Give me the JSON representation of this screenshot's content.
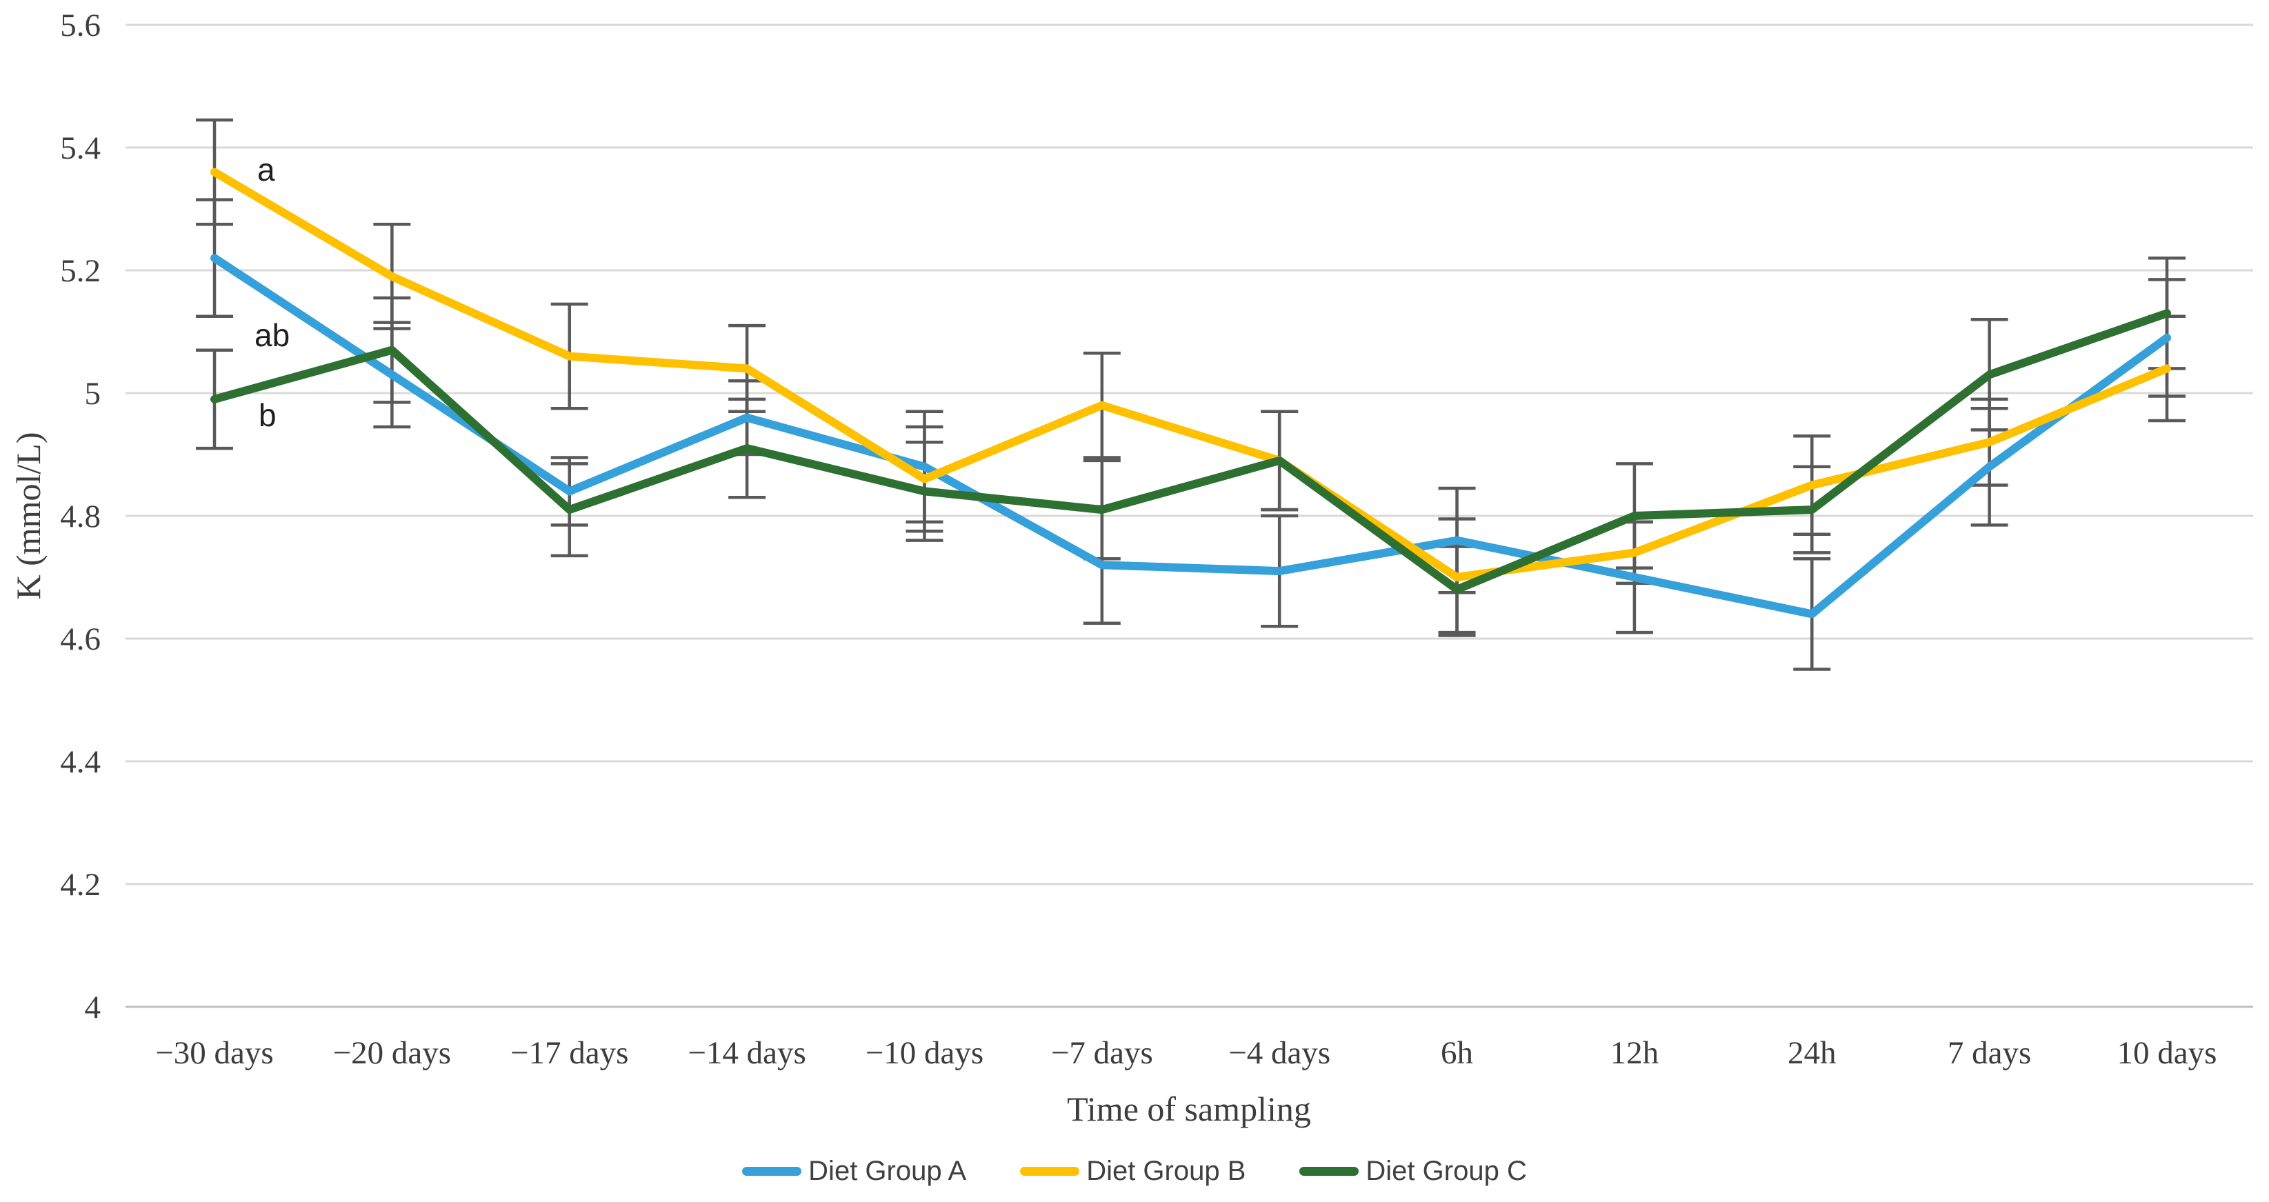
{
  "page": {
    "background": "#FFFFFF"
  },
  "chart_data": {
    "type": "line",
    "title": "",
    "xlabel": "Time of sampling",
    "ylabel": "K (mmol/L)",
    "ylim": [
      4,
      5.6
    ],
    "grid": true,
    "legend_position": "bottom",
    "error_bars": true,
    "yticks": [
      {
        "label": "5.6",
        "value": 5.6
      },
      {
        "label": "5.4",
        "value": 5.4
      },
      {
        "label": "5.2",
        "value": 5.2
      },
      {
        "label": "5",
        "value": 5.0
      },
      {
        "label": "4.8",
        "value": 4.8
      },
      {
        "label": "4.6",
        "value": 4.6
      },
      {
        "label": "4.4",
        "value": 4.4
      },
      {
        "label": "4.2",
        "value": 4.2
      },
      {
        "label": "4",
        "value": 4.0
      }
    ],
    "categories": [
      "−30 days",
      "−20 days",
      "−17 days",
      "−14 days",
      "−10 days",
      "−7 days",
      "−4 days",
      "6h",
      "12h",
      "24h",
      "7 days",
      "10 days"
    ],
    "series": [
      {
        "name": "Diet Group A",
        "color": "#36A0DA",
        "values": [
          5.22,
          5.03,
          4.84,
          4.96,
          4.88,
          4.72,
          4.71,
          4.76,
          4.7,
          4.64,
          4.88,
          5.09
        ],
        "errors": [
          0.095,
          0.085,
          0.055,
          0.06,
          0.09,
          0.095,
          0.09,
          0.085,
          0.09,
          0.09,
          0.095,
          0.095
        ]
      },
      {
        "name": "Diet Group B",
        "color": "#FFC000",
        "values": [
          5.36,
          5.19,
          5.06,
          5.04,
          4.86,
          4.98,
          4.89,
          4.7,
          4.74,
          4.85,
          4.92,
          5.04
        ],
        "errors": [
          0.085,
          0.085,
          0.085,
          0.07,
          0.085,
          0.085,
          0.08,
          0.095,
          0.05,
          0.08,
          0.07,
          0.085
        ]
      },
      {
        "name": "Diet Group C",
        "color": "#2E7031",
        "values": [
          4.99,
          5.07,
          4.81,
          4.91,
          4.84,
          4.81,
          4.89,
          4.68,
          4.8,
          4.81,
          5.03,
          5.13
        ],
        "errors": [
          0.08,
          0.085,
          0.075,
          0.08,
          0.08,
          0.08,
          0.08,
          0.07,
          0.085,
          0.07,
          0.09,
          0.09
        ]
      }
    ],
    "annotations": [
      {
        "label": "a",
        "category_index": 0,
        "value": 5.36,
        "dx": 62
      },
      {
        "label": "ab",
        "category_index": 0,
        "value": 5.09,
        "dx": 58
      },
      {
        "label": "b",
        "category_index": 0,
        "value": 4.96,
        "dx": 64
      }
    ],
    "colors": {
      "grid": "#D9D9D9",
      "axis_line": "#BFBFBF",
      "error_bar": "#595959",
      "tick_text": "#3D3D3D",
      "axis_title_text": "#3D3D3D",
      "legend_text": "#404040",
      "annotation_text": "#1F1F1F"
    }
  }
}
